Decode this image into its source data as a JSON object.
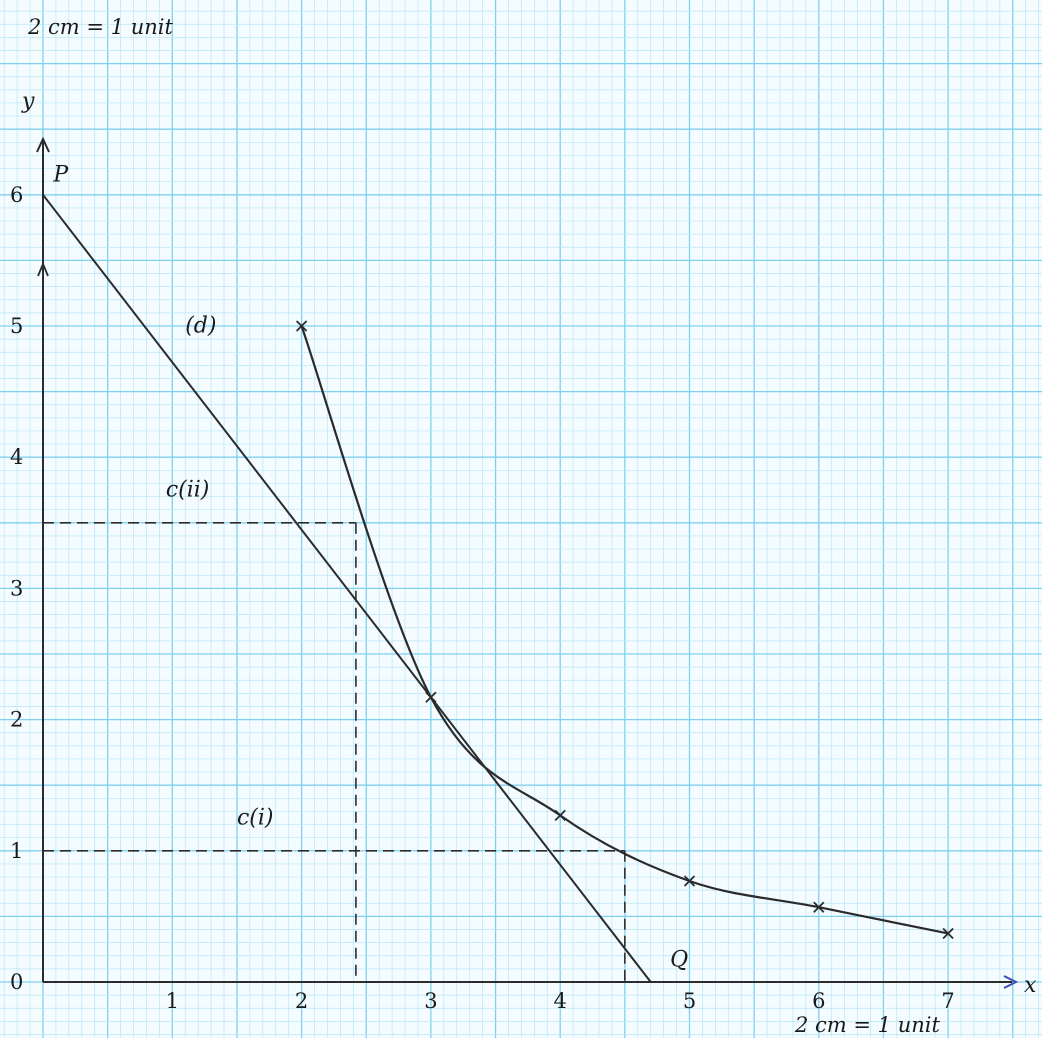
{
  "chart_data": {
    "type": "line",
    "scale_note_top": "2 cm = 1 unit",
    "scale_note_bottom": "2 cm = 1 unit",
    "xlabel": "x",
    "ylabel": "y",
    "xlim": [
      0,
      7.5
    ],
    "ylim": [
      0,
      6.5
    ],
    "x_ticks": [
      "1",
      "2",
      "3",
      "4",
      "5",
      "6",
      "7"
    ],
    "y_ticks": [
      "0",
      "1",
      "2",
      "3",
      "4",
      "5",
      "6"
    ],
    "grid": true,
    "series": [
      {
        "type": "curve",
        "x": [
          2,
          3,
          4,
          5,
          6,
          7
        ],
        "y": [
          5.0,
          2.17,
          1.27,
          0.77,
          0.57,
          0.37
        ]
      },
      {
        "type": "line",
        "x": [
          0,
          4.7
        ],
        "y": [
          6,
          0
        ]
      }
    ],
    "guides": [
      {
        "x": 2.42,
        "y": 3.5
      },
      {
        "x": 4.5,
        "y": 1.0
      }
    ],
    "annotations": [
      {
        "text": "P",
        "x": 0.08,
        "y": 6.1
      },
      {
        "text": "(d)",
        "x": 1.1,
        "y": 4.95
      },
      {
        "text": "c(ii)",
        "x": 0.95,
        "y": 3.7
      },
      {
        "text": "c(i)",
        "x": 1.5,
        "y": 1.2
      },
      {
        "text": "Q",
        "x": 4.85,
        "y": 0.12
      }
    ],
    "colors": {
      "grid_minor": "#b9e6f7",
      "grid_major": "#7fd0ef",
      "ink": "#2b2b2b",
      "axis_arrow": "#3b4fb8"
    }
  }
}
